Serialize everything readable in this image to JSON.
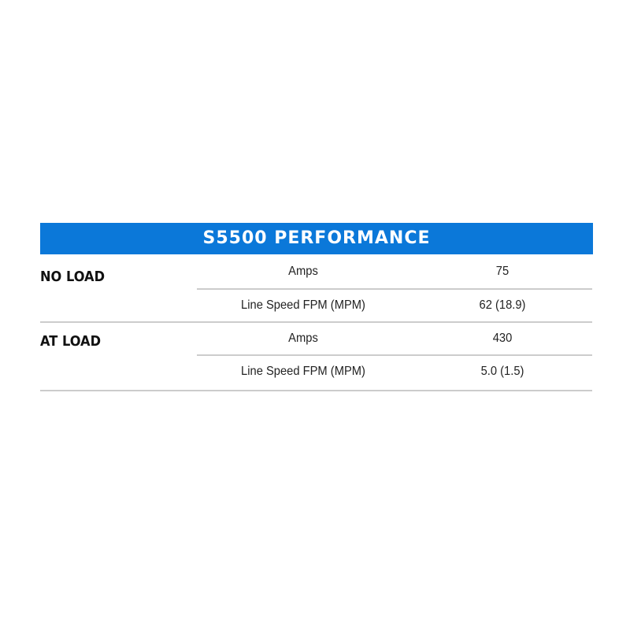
{
  "title": "S5500 PERFORMANCE",
  "groups": [
    {
      "label": "NO LOAD",
      "rows": [
        {
          "label": "Amps",
          "value": "75"
        },
        {
          "label": "Line Speed FPM (MPM)",
          "value": "62 (18.9)"
        }
      ]
    },
    {
      "label": "AT LOAD",
      "rows": [
        {
          "label": "Amps",
          "value": "430"
        },
        {
          "label": "Line Speed FPM (MPM)",
          "value": "5.0 (1.5)"
        }
      ]
    }
  ],
  "colors": {
    "header": "#0b78d9"
  }
}
